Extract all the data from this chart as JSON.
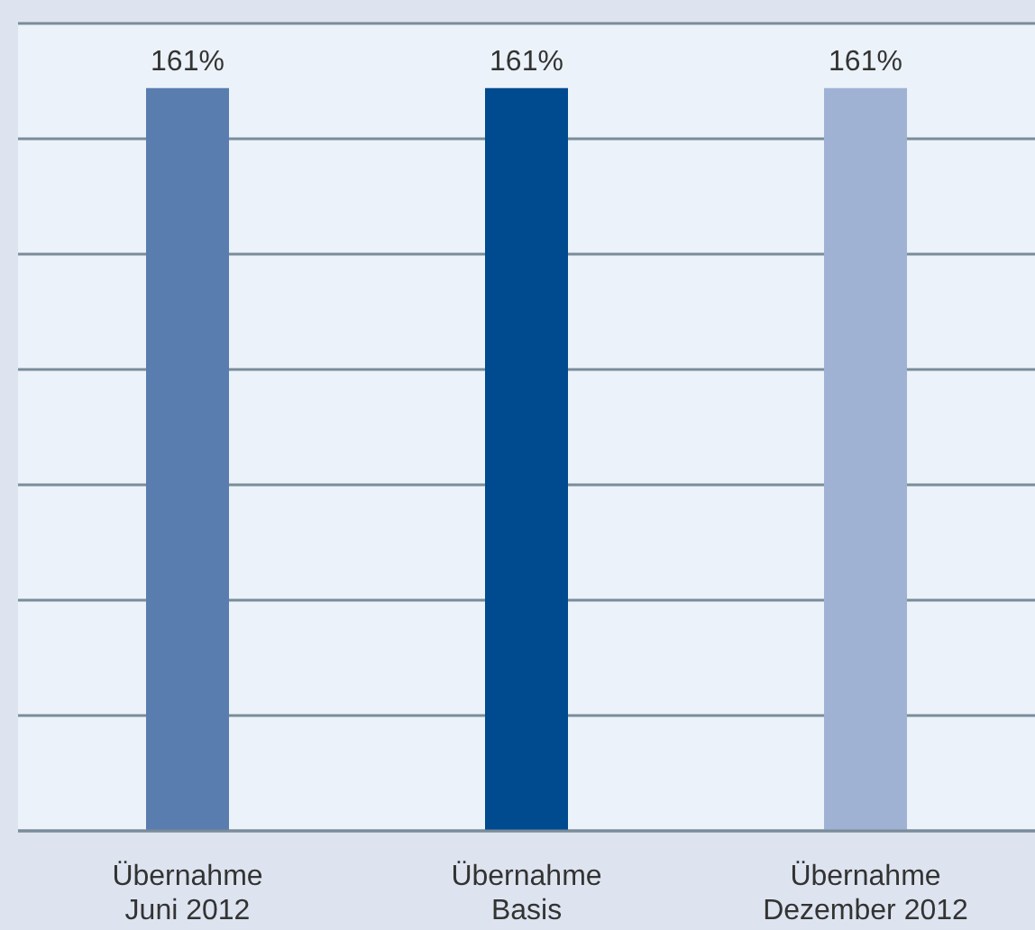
{
  "chart_data": {
    "type": "bar",
    "categories": [
      "Übernahme\nJuni 2012",
      "Übernahme\nBasis",
      "Übernahme\nDezember 2012"
    ],
    "values": [
      161,
      161,
      161
    ],
    "colors": [
      "#5a7db0",
      "#004a8f",
      "#a0b2d4"
    ],
    "value_labels": [
      "161%",
      "161%",
      "161%"
    ],
    "grid": "y",
    "tick_labels": "x"
  }
}
